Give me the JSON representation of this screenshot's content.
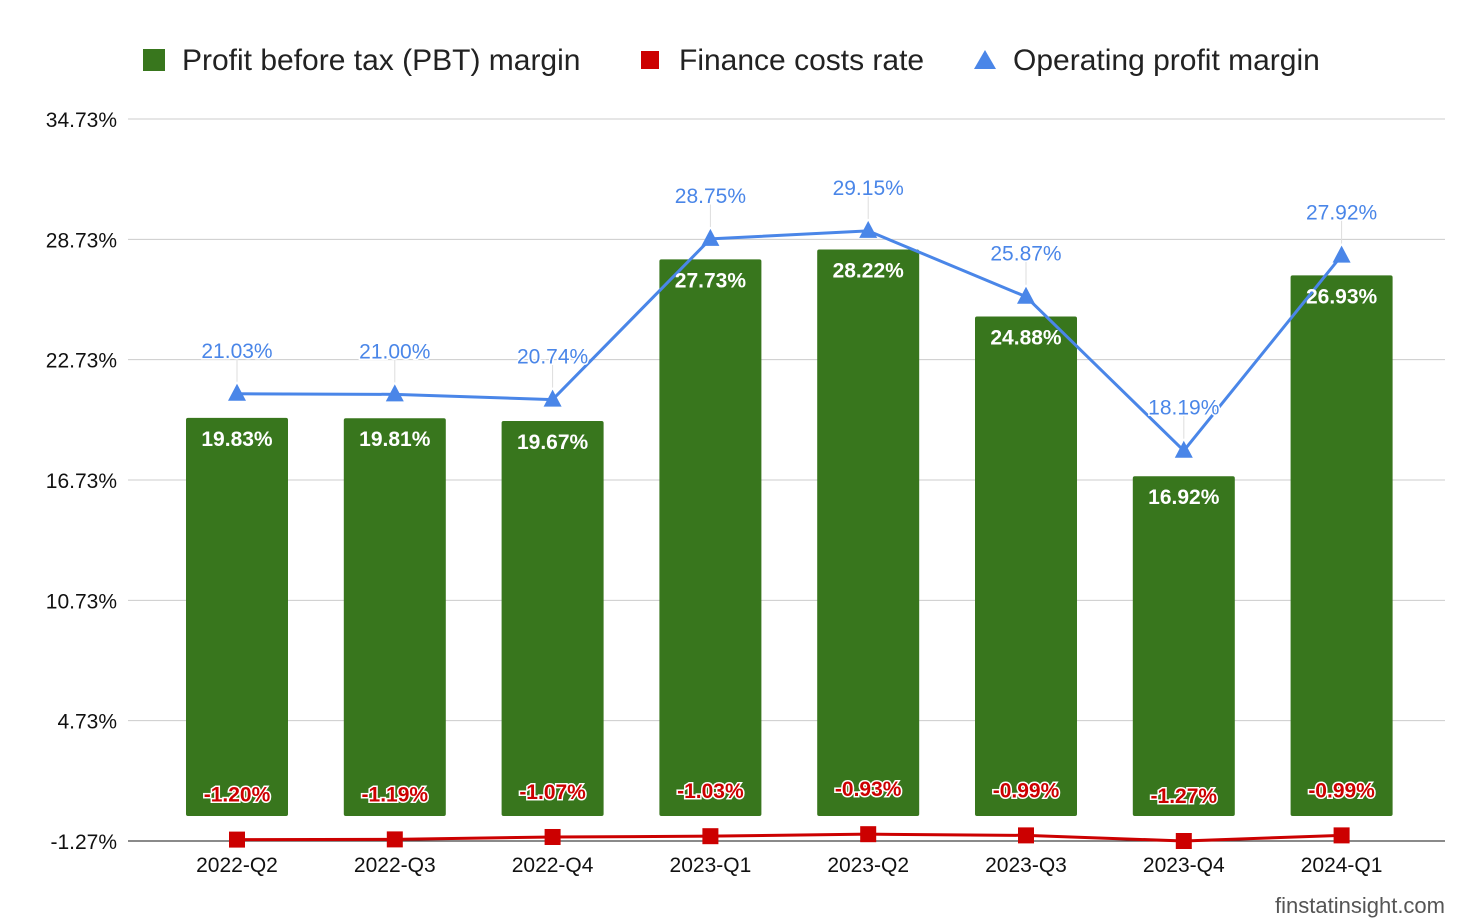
{
  "chart_data": {
    "type": "bar",
    "categories": [
      "2022-Q2",
      "2022-Q3",
      "2022-Q4",
      "2023-Q1",
      "2023-Q2",
      "2023-Q3",
      "2023-Q4",
      "2024-Q1"
    ],
    "series": [
      {
        "name": "Profit before tax (PBT) margin",
        "type": "bar",
        "color": "#38761d",
        "values": [
          19.83,
          19.81,
          19.67,
          27.73,
          28.22,
          24.88,
          16.92,
          26.93
        ],
        "labels": [
          "19.83%",
          "19.81%",
          "19.67%",
          "27.73%",
          "28.22%",
          "24.88%",
          "16.92%",
          "26.93%"
        ]
      },
      {
        "name": "Finance costs rate",
        "type": "line",
        "marker": "square",
        "color": "#cc0000",
        "values": [
          -1.2,
          -1.19,
          -1.07,
          -1.03,
          -0.93,
          -0.99,
          -1.27,
          -0.99
        ],
        "labels": [
          "-1.20%",
          "-1.19%",
          "-1.07%",
          "-1.03%",
          "-0.93%",
          "-0.99%",
          "-1.27%",
          "-0.99%"
        ]
      },
      {
        "name": "Operating profit margin",
        "type": "line",
        "marker": "triangle",
        "color": "#4a86e8",
        "values": [
          21.03,
          21.0,
          20.74,
          28.75,
          29.15,
          25.87,
          18.19,
          27.92
        ],
        "labels": [
          "21.03%",
          "21.00%",
          "20.74%",
          "28.75%",
          "29.15%",
          "25.87%",
          "18.19%",
          "27.92%"
        ]
      }
    ],
    "yticks": [
      -1.27,
      4.73,
      10.73,
      16.73,
      22.73,
      28.73,
      34.73
    ],
    "ytick_labels": [
      "-1.27%",
      "4.73%",
      "10.73%",
      "16.73%",
      "22.73%",
      "28.73%",
      "34.73%"
    ],
    "ylim": [
      -1.27,
      34.73
    ],
    "grid": true,
    "legend_position": "top",
    "title": "",
    "xlabel": "",
    "ylabel": ""
  },
  "watermark": "finstatinsight.com"
}
